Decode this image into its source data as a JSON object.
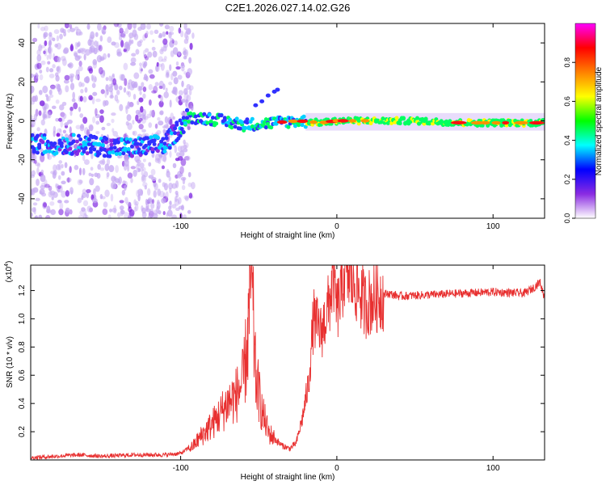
{
  "page": {
    "title": "C2E1.2026.027.14.02.G26"
  },
  "chart_data": [
    {
      "id": "spectrogram",
      "type": "heatmap",
      "title": "C2E1.2026.027.14.02.G26",
      "xlabel": "Height of straight line (km)",
      "ylabel": "Frequency (Hz)",
      "xlim": [
        -196,
        133
      ],
      "ylim": [
        -50,
        50
      ],
      "x_ticks": [
        {
          "value": -100,
          "label": "-100"
        },
        {
          "value": 0,
          "label": "0"
        },
        {
          "value": 100,
          "label": "100"
        }
      ],
      "y_ticks": [
        {
          "value": -40,
          "label": "-40"
        },
        {
          "value": -20,
          "label": "-20"
        },
        {
          "value": 0,
          "label": "0"
        },
        {
          "value": 20,
          "label": "20"
        },
        {
          "value": 40,
          "label": "40"
        }
      ],
      "ridge": {
        "x": [
          -196,
          -170,
          -150,
          -130,
          -110,
          -100,
          -95,
          -80,
          -60,
          -40,
          -25,
          -10,
          0,
          20,
          50,
          80,
          110,
          133
        ],
        "y": [
          -12,
          -12,
          -13,
          -14,
          -12,
          -3,
          2,
          1,
          -2,
          -1,
          0,
          -1,
          0,
          0,
          0,
          -1,
          -1,
          -1
        ]
      },
      "colorbar": {
        "label": "Normalized spectral amplitude",
        "range": [
          0,
          1
        ],
        "ticks": [
          {
            "value": 0.0,
            "label": "0.0"
          },
          {
            "value": 0.2,
            "label": "0.2"
          },
          {
            "value": 0.4,
            "label": "0.4"
          },
          {
            "value": 0.6,
            "label": "0.6"
          },
          {
            "value": 0.8,
            "label": "0.8"
          }
        ],
        "colors": [
          "#ffffff",
          "#8a2be2",
          "#0000ff",
          "#00ffff",
          "#00ff00",
          "#ffff00",
          "#ff8000",
          "#ff0000",
          "#ff00ff"
        ]
      }
    },
    {
      "id": "snr",
      "type": "line",
      "xlabel": "Height of straight line (km)",
      "ylabel": "SNR (10 * v/v)",
      "multiplier": "(x10",
      "multiplier_exp": "4",
      "multiplier_close": ")",
      "xlim": [
        -196,
        133
      ],
      "ylim": [
        0,
        1.38
      ],
      "line_color": "#e83030",
      "x_ticks": [
        {
          "value": -100,
          "label": "-100"
        },
        {
          "value": 0,
          "label": "0"
        },
        {
          "value": 100,
          "label": "100"
        }
      ],
      "y_ticks": [
        {
          "value": 0.2,
          "label": "0.2"
        },
        {
          "value": 0.4,
          "label": "0.4"
        },
        {
          "value": 0.6,
          "label": "0.6"
        },
        {
          "value": 0.8,
          "label": "0.8"
        },
        {
          "value": 1.0,
          "label": "1.0"
        },
        {
          "value": 1.2,
          "label": "1.2"
        }
      ],
      "series": [
        {
          "name": "SNR",
          "x": [
            -196,
            -180,
            -165,
            -150,
            -130,
            -110,
            -100,
            -92,
            -86,
            -80,
            -75,
            -70,
            -65,
            -60,
            -57,
            -55,
            -52,
            -48,
            -44,
            -40,
            -35,
            -30,
            -26,
            -22,
            -18,
            -15,
            -10,
            -5,
            -2,
            0,
            3,
            5,
            8,
            12,
            18,
            25,
            32,
            40,
            60,
            80,
            100,
            120,
            126,
            130,
            133
          ],
          "y": [
            0.01,
            0.02,
            0.03,
            0.02,
            0.03,
            0.03,
            0.04,
            0.1,
            0.18,
            0.25,
            0.32,
            0.4,
            0.45,
            0.55,
            0.85,
            1.33,
            0.6,
            0.35,
            0.2,
            0.15,
            0.1,
            0.08,
            0.12,
            0.3,
            0.55,
            1.0,
            0.9,
            1.1,
            1.33,
            1.05,
            1.2,
            1.37,
            1.3,
            1.25,
            1.1,
            1.15,
            1.18,
            1.16,
            1.17,
            1.18,
            1.19,
            1.18,
            1.22,
            1.26,
            1.15
          ]
        }
      ]
    }
  ]
}
